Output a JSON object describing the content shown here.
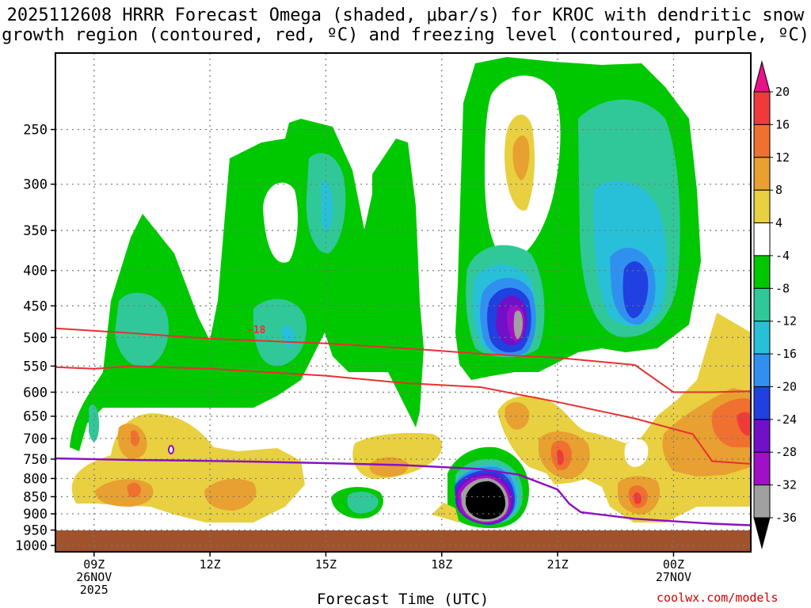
{
  "title_line1": "2025112608 HRRR Forecast Omega (shaded, μbar/s) for KROC with dendritic snow",
  "title_line2": "growth region (contoured, red, ºC) and freezing level (contoured, purple, ºC)",
  "x_axis_title": "Forecast Time (UTC)",
  "credit": "coolwx.com/models",
  "contour_label": "-18",
  "chart_data": {
    "type": "heatmap",
    "title": "2025112608 HRRR Forecast Omega (shaded, μbar/s) for KROC with dendritic snow growth region (contoured, red, ºC) and freezing level (contoured, purple, ºC)",
    "xlabel": "Forecast Time (UTC)",
    "ylabel": "",
    "y_scale": "log-pressure, inverted",
    "y_ticks": [
      "250",
      "300",
      "350",
      "400",
      "450",
      "500",
      "550",
      "600",
      "650",
      "700",
      "750",
      "800",
      "850",
      "900",
      "950",
      "1000"
    ],
    "y_tick_values": [
      250,
      300,
      350,
      400,
      450,
      500,
      550,
      600,
      650,
      700,
      750,
      800,
      850,
      900,
      950,
      1000
    ],
    "x_ticks": [
      {
        "label": "09Z",
        "sub1": "26NOV",
        "sub2": "2025",
        "hour": 9
      },
      {
        "label": "12Z",
        "sub1": "",
        "sub2": "",
        "hour": 12
      },
      {
        "label": "15Z",
        "sub1": "",
        "sub2": "",
        "hour": 15
      },
      {
        "label": "18Z",
        "sub1": "",
        "sub2": "",
        "hour": 18
      },
      {
        "label": "21Z",
        "sub1": "",
        "sub2": "",
        "hour": 21
      },
      {
        "label": "00Z",
        "sub1": "27NOV",
        "sub2": "",
        "hour": 24
      }
    ],
    "xlim_hours": [
      8,
      26
    ],
    "ylim_hpa": [
      200,
      1000
    ],
    "grid": true,
    "colorbar": {
      "labels": [
        "20",
        "16",
        "12",
        "8",
        "4",
        "-4",
        "-8",
        "-12",
        "-16",
        "-20",
        "-24",
        "-28",
        "-32",
        "-36"
      ],
      "colors": [
        "#e8128a",
        "#f03a3a",
        "#f07030",
        "#e8a030",
        "#e8d040",
        "#ffffff",
        "#00c800",
        "#30c898",
        "#28c0d8",
        "#3090f0",
        "#2040e0",
        "#7010c8",
        "#a010c8",
        "#a0a0a0",
        "#000000"
      ]
    },
    "freezing_level_hpa": [
      {
        "hour": 8.0,
        "p": 748
      },
      {
        "hour": 10.0,
        "p": 752
      },
      {
        "hour": 11.0,
        "p": 753
      },
      {
        "hour": 13.0,
        "p": 756
      },
      {
        "hour": 15.0,
        "p": 760
      },
      {
        "hour": 17.0,
        "p": 765
      },
      {
        "hour": 19.0,
        "p": 775
      },
      {
        "hour": 20.0,
        "p": 790
      },
      {
        "hour": 21.0,
        "p": 830
      },
      {
        "hour": 21.3,
        "p": 870
      },
      {
        "hour": 21.6,
        "p": 895
      },
      {
        "hour": 23.0,
        "p": 915
      },
      {
        "hour": 25.0,
        "p": 930
      },
      {
        "hour": 26.0,
        "p": 935
      }
    ],
    "dgz_top_hpa": [
      {
        "hour": 8.0,
        "p": 485
      },
      {
        "hour": 10.0,
        "p": 493
      },
      {
        "hour": 12.0,
        "p": 502
      },
      {
        "hour": 15.0,
        "p": 510
      },
      {
        "hour": 17.0,
        "p": 518
      },
      {
        "hour": 19.0,
        "p": 528
      },
      {
        "hour": 21.0,
        "p": 535
      },
      {
        "hour": 23.0,
        "p": 548
      },
      {
        "hour": 24.0,
        "p": 600
      },
      {
        "hour": 25.0,
        "p": 600
      },
      {
        "hour": 26.0,
        "p": 598
      }
    ],
    "dgz_bottom_hpa": [
      {
        "hour": 8.0,
        "p": 552
      },
      {
        "hour": 9.0,
        "p": 555
      },
      {
        "hour": 10.0,
        "p": 550
      },
      {
        "hour": 12.0,
        "p": 555
      },
      {
        "hour": 15.0,
        "p": 568
      },
      {
        "hour": 17.0,
        "p": 582
      },
      {
        "hour": 19.0,
        "p": 590
      },
      {
        "hour": 21.0,
        "p": 620
      },
      {
        "hour": 23.0,
        "p": 655
      },
      {
        "hour": 24.5,
        "p": 690
      },
      {
        "hour": 25.0,
        "p": 755
      },
      {
        "hour": 26.0,
        "p": 762
      }
    ]
  }
}
